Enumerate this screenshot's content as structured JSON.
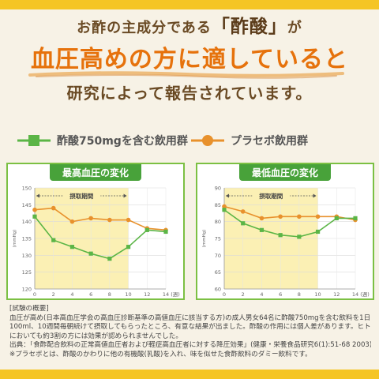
{
  "header": {
    "line1_pre": "お酢の主成分である",
    "line1_highlight": "「酢酸」",
    "line1_post": "が",
    "line2": "血圧高めの方に適していると",
    "line3": "研究によって報告されています。"
  },
  "legend": {
    "acetic_label": "酢酸750mgを含む飲用群",
    "placebo_label": "プラセボ飲用群"
  },
  "colors": {
    "acetic": "#5bb546",
    "placebo": "#e8912c",
    "panel_border": "#7cc043",
    "title_bg": "#48a23a",
    "intake_band": "#fbf0b4",
    "headline_orange": "#e6720c"
  },
  "chart_data": [
    {
      "type": "line",
      "title": "最高血圧の変化",
      "intake_label": "摂取期間",
      "ylabel": "(mmHg)",
      "xlabel": "(週)",
      "x": [
        0,
        2,
        4,
        6,
        8,
        10,
        12,
        14
      ],
      "xticks": [
        "0",
        "2",
        "4",
        "6",
        "8",
        "10",
        "12",
        "14"
      ],
      "xlim": [
        0,
        14
      ],
      "ylim": [
        120,
        150
      ],
      "yticks": [
        "150",
        "145",
        "140",
        "135",
        "130",
        "125",
        "120"
      ],
      "intake_period": [
        0,
        10
      ],
      "series": [
        {
          "values": [
            141.5,
            134.5,
            132.5,
            130.5,
            129,
            132.5,
            137.5,
            137
          ]
        },
        {
          "values": [
            143.5,
            144,
            140,
            141,
            140.5,
            140.5,
            138,
            137.5
          ]
        }
      ]
    },
    {
      "type": "line",
      "title": "最低血圧の変化",
      "intake_label": "摂取期間",
      "ylabel": "(mmHg)",
      "xlabel": "(週)",
      "x": [
        0,
        2,
        4,
        6,
        8,
        10,
        12,
        14
      ],
      "xticks": [
        "0",
        "2",
        "4",
        "6",
        "8",
        "10",
        "12",
        "14"
      ],
      "xlim": [
        0,
        14
      ],
      "ylim": [
        60,
        90
      ],
      "yticks": [
        "90",
        "85",
        "80",
        "75",
        "70",
        "65",
        "60"
      ],
      "intake_period": [
        0,
        10
      ],
      "series": [
        {
          "values": [
            83.5,
            79.5,
            77.5,
            76,
            75.5,
            77,
            81,
            81
          ]
        },
        {
          "values": [
            84.5,
            83,
            81,
            81.5,
            81.5,
            81.5,
            81.5,
            80.5
          ]
        }
      ]
    }
  ],
  "trial": {
    "lines": [
      "[試験の概要]",
      "血圧が高め(日本高血圧学会の高血圧診断基準の高値血圧に該当する方)の成人男女64名に酢酸750mgを含む飲料を1日",
      "100ml、10週間毎朝続けて摂取してもらったところ、有意な結果が出ました。酢酸の作用には個人差があります。ヒト試験",
      "においても約3割の方には効果が認められませんでした。",
      "出典：「食酢配合飲料の正常高値血圧者および軽症高血圧者に対する降圧効果」(健康・栄養食品研究6(1):51-68 2003)",
      "※プラセボとは、酢酸のかわりに他の有機酸(乳酸)を入れ、味を似せた食酢飲料のダミー飲料です。"
    ]
  }
}
